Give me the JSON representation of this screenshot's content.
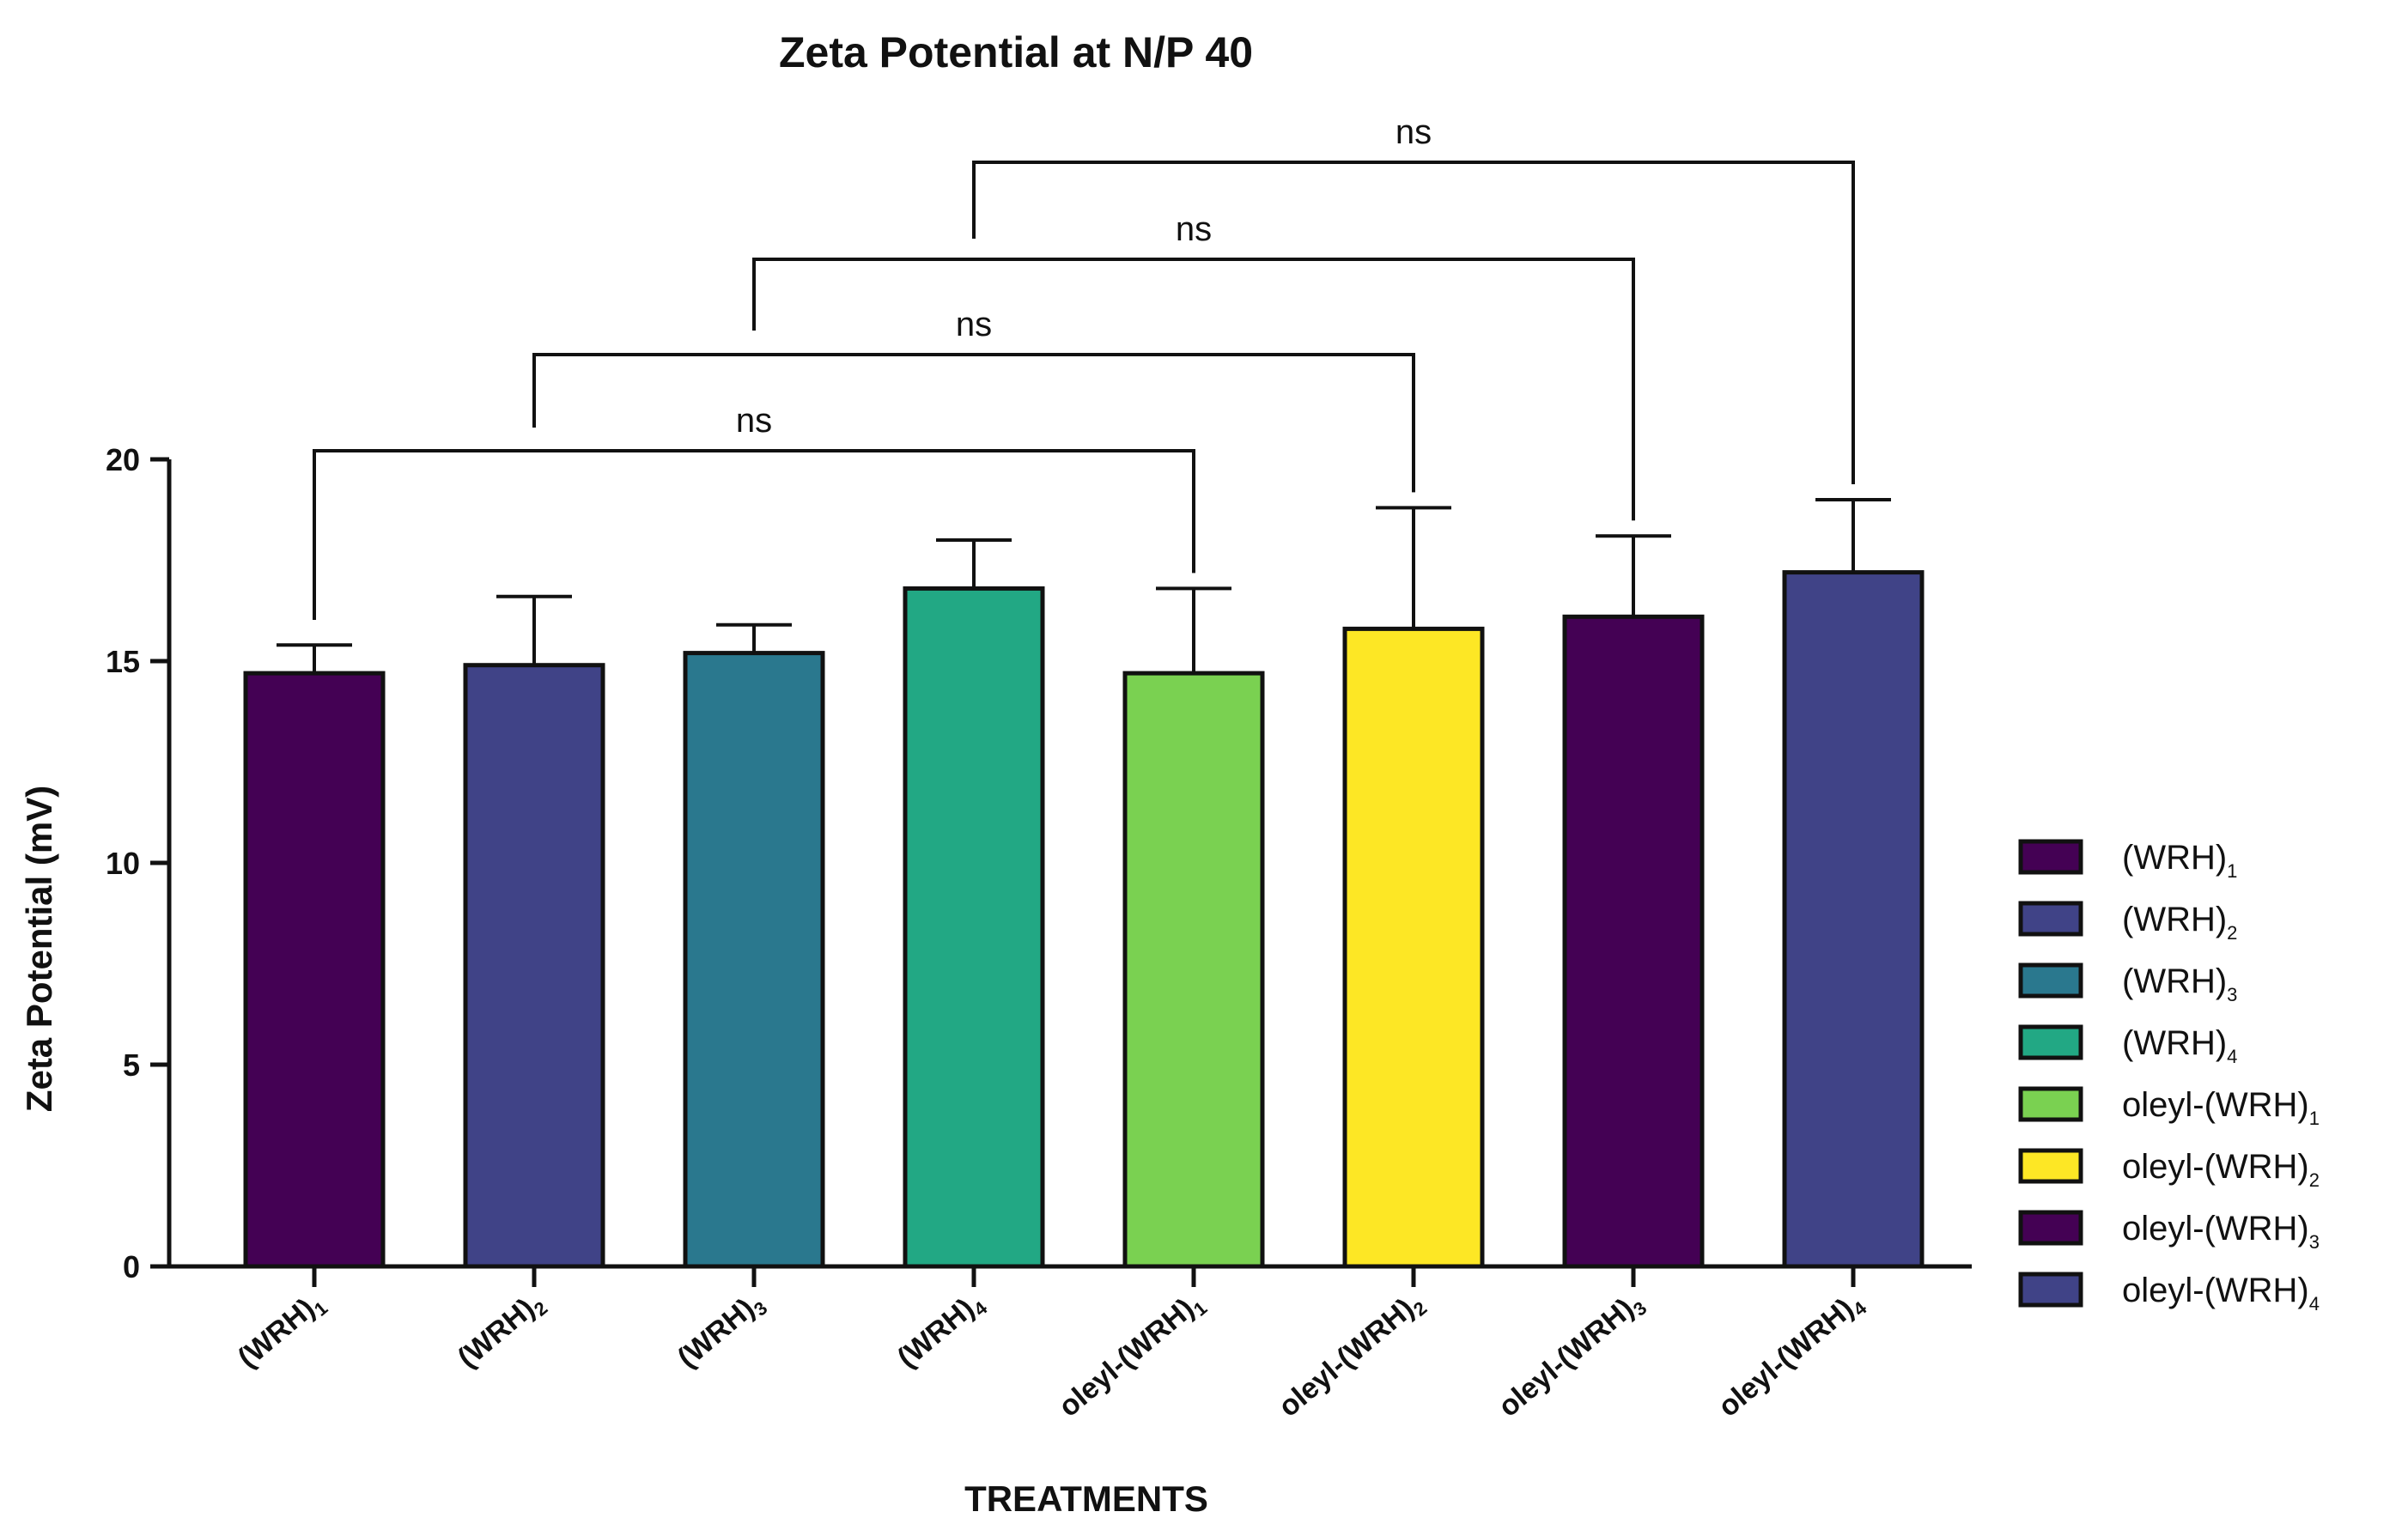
{
  "chart_data": {
    "type": "bar",
    "title": "Zeta Potential at N/P 40",
    "xlabel": "TREATMENTS",
    "ylabel": "Zeta Potential (mV)",
    "ylim": [
      0,
      20
    ],
    "yticks": [
      0,
      5,
      10,
      15,
      20
    ],
    "categories": [
      {
        "base": "(WRH)",
        "sub": "1"
      },
      {
        "base": "(WRH)",
        "sub": "2"
      },
      {
        "base": "(WRH)",
        "sub": "3"
      },
      {
        "base": "(WRH)",
        "sub": "4"
      },
      {
        "base": "oleyl-(WRH)",
        "sub": "1"
      },
      {
        "base": "oleyl-(WRH)",
        "sub": "2"
      },
      {
        "base": "oleyl-(WRH)",
        "sub": "3"
      },
      {
        "base": "oleyl-(WRH)",
        "sub": "4"
      }
    ],
    "values": [
      14.7,
      14.9,
      15.2,
      16.8,
      14.7,
      15.8,
      16.1,
      17.2
    ],
    "errors": [
      0.7,
      1.7,
      0.7,
      1.2,
      2.1,
      3.0,
      2.0,
      1.8
    ],
    "colors": [
      "#440154",
      "#404387",
      "#2a788e",
      "#22a884",
      "#7ad151",
      "#fde725",
      "#440154",
      "#404387"
    ],
    "comparisons": [
      {
        "from": 0,
        "to": 4,
        "label": "ns"
      },
      {
        "from": 1,
        "to": 5,
        "label": "ns"
      },
      {
        "from": 2,
        "to": 6,
        "label": "ns"
      },
      {
        "from": 3,
        "to": 7,
        "label": "ns"
      }
    ],
    "grid": false,
    "legend_position": "right"
  }
}
